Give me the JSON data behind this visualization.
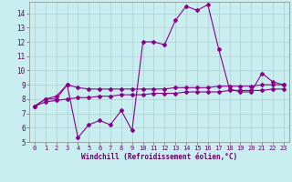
{
  "xlabel": "Windchill (Refroidissement éolien,°C)",
  "bg_color": "#c8eef0",
  "grid_color": "#b0cdd0",
  "line_color": "#8b008b",
  "x": [
    0,
    1,
    2,
    3,
    4,
    5,
    6,
    7,
    8,
    9,
    10,
    11,
    12,
    13,
    14,
    15,
    16,
    17,
    18,
    19,
    20,
    21,
    22,
    23
  ],
  "y_main": [
    7.5,
    8.0,
    8.0,
    9.0,
    5.3,
    6.2,
    6.5,
    6.2,
    7.2,
    5.8,
    12.0,
    12.0,
    11.8,
    13.5,
    14.5,
    14.2,
    14.6,
    11.5,
    8.7,
    8.5,
    8.5,
    9.8,
    9.2,
    9.0
  ],
  "y_upper": [
    7.5,
    8.0,
    8.2,
    9.0,
    8.8,
    8.7,
    8.7,
    8.7,
    8.7,
    8.7,
    8.7,
    8.7,
    8.7,
    8.8,
    8.8,
    8.8,
    8.8,
    8.9,
    8.9,
    8.9,
    8.9,
    9.0,
    9.0,
    9.0
  ],
  "y_lower": [
    7.5,
    7.8,
    7.9,
    8.0,
    8.1,
    8.1,
    8.2,
    8.2,
    8.3,
    8.3,
    8.3,
    8.4,
    8.4,
    8.4,
    8.5,
    8.5,
    8.5,
    8.5,
    8.6,
    8.6,
    8.6,
    8.6,
    8.7,
    8.7
  ],
  "ylim": [
    5,
    14.8
  ],
  "yticks": [
    5,
    6,
    7,
    8,
    9,
    10,
    11,
    12,
    13,
    14
  ],
  "xlim": [
    -0.5,
    23.5
  ],
  "xticks": [
    0,
    1,
    2,
    3,
    4,
    5,
    6,
    7,
    8,
    9,
    10,
    11,
    12,
    13,
    14,
    15,
    16,
    17,
    18,
    19,
    20,
    21,
    22,
    23
  ],
  "xtick_labels": [
    "0",
    "1",
    "2",
    "3",
    "4",
    "5",
    "6",
    "7",
    "8",
    "9",
    "10",
    "11",
    "12",
    "13",
    "14",
    "15",
    "16",
    "17",
    "18",
    "19",
    "20",
    "21",
    "22",
    "23"
  ]
}
